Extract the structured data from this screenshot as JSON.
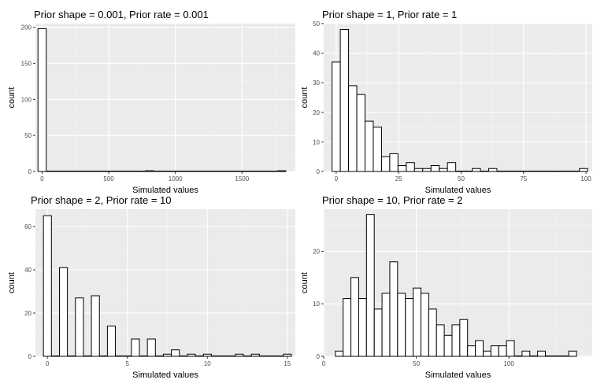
{
  "chart_data": [
    {
      "type": "bar",
      "title": "Prior shape = 0.001, Prior rate = 0.001",
      "xlabel": "Simulated values",
      "ylabel": "count",
      "xlim": [
        -50,
        1900
      ],
      "ylim": [
        0,
        205
      ],
      "xticks": [
        0,
        500,
        1000,
        1500
      ],
      "yticks": [
        0,
        50,
        100,
        150,
        200
      ],
      "bin_width": 62,
      "bins": [
        {
          "x0": -31,
          "x1": 31,
          "count": 198
        },
        {
          "x0": 31,
          "x1": 775,
          "count": 0
        },
        {
          "x0": 775,
          "x1": 837,
          "count": 1
        },
        {
          "x0": 837,
          "x1": 1767,
          "count": 0
        },
        {
          "x0": 1767,
          "x1": 1829,
          "count": 1
        }
      ],
      "grid": true
    },
    {
      "type": "bar",
      "title": "Prior shape = 1, Prior rate = 1",
      "xlabel": "Simulated values",
      "ylabel": "count",
      "xlim": [
        -5,
        102.5
      ],
      "ylim": [
        0,
        50
      ],
      "xticks": [
        0,
        25,
        50,
        75,
        100
      ],
      "yticks": [
        0,
        10,
        20,
        30,
        40,
        50
      ],
      "bin_start": -1.65,
      "bin_width": 3.3,
      "counts": [
        37,
        48,
        29,
        26,
        17,
        15,
        5,
        6,
        2,
        3,
        1,
        1,
        2,
        1,
        3,
        0,
        0,
        1,
        0,
        1,
        0,
        0,
        0,
        0,
        0,
        0,
        0,
        0,
        0,
        0,
        1
      ],
      "grid": true
    },
    {
      "type": "bar",
      "title": "Prior shape = 2, Prior rate = 10",
      "xlabel": "Simulated values",
      "ylabel": "count",
      "xlim": [
        -0.75,
        15.5
      ],
      "ylim": [
        0,
        68
      ],
      "xticks": [
        0,
        5,
        10,
        15
      ],
      "yticks": [
        0,
        20,
        40,
        60
      ],
      "bin_start": -0.25,
      "bin_width": 0.5,
      "counts": [
        65,
        0,
        41,
        0,
        27,
        0,
        28,
        0,
        14,
        0,
        0,
        8,
        0,
        8,
        0,
        1,
        3,
        0,
        1,
        0,
        1,
        0,
        0,
        0,
        1,
        0,
        1,
        0,
        0,
        0,
        1
      ],
      "grid": true
    },
    {
      "type": "bar",
      "title": "Prior shape = 10, Prior rate = 2",
      "xlabel": "Simulated values",
      "ylabel": "count",
      "xlim": [
        0,
        145
      ],
      "ylim": [
        0,
        28
      ],
      "xticks": [
        0,
        50,
        100
      ],
      "yticks": [
        0,
        10,
        20
      ],
      "bin_start": 6.3,
      "bin_width": 4.2,
      "counts": [
        1,
        11,
        15,
        11,
        27,
        9,
        12,
        18,
        12,
        11,
        13,
        12,
        9,
        6,
        4,
        6,
        7,
        2,
        3,
        1,
        2,
        2,
        3,
        0,
        1,
        0,
        1,
        0,
        0,
        0,
        1
      ],
      "grid": true
    }
  ]
}
